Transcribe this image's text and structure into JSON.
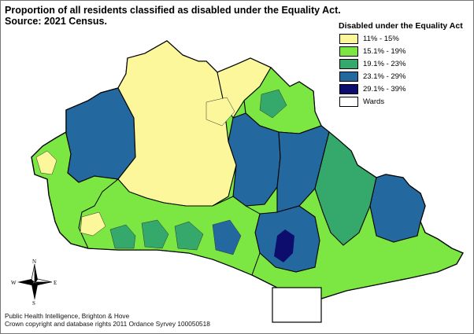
{
  "map": {
    "title_line1": "Proportion of all residents classified as disabled under the Equality Act.",
    "title_line2": "Source: 2021 Census."
  },
  "legend": {
    "title": "Disabled under the Equality Act",
    "classes": [
      {
        "label": "11% - 15%",
        "color": "#fbf79a"
      },
      {
        "label": "15.1% - 19%",
        "color": "#7ce642"
      },
      {
        "label": "19.1% - 23%",
        "color": "#34a96b"
      },
      {
        "label": "23.1% - 29%",
        "color": "#2369a0"
      },
      {
        "label": "29.1% - 39%",
        "color": "#0d0d6e"
      }
    ],
    "wards_label": "Wards"
  },
  "compass": {
    "n": "N",
    "s": "S",
    "e": "E",
    "w": "W"
  },
  "credits": {
    "line1": "Public Health Intelligence, Brighton & Hove",
    "line2": "Crown copyright and database rights 2011 Ordance Syrvey 100050518"
  }
}
